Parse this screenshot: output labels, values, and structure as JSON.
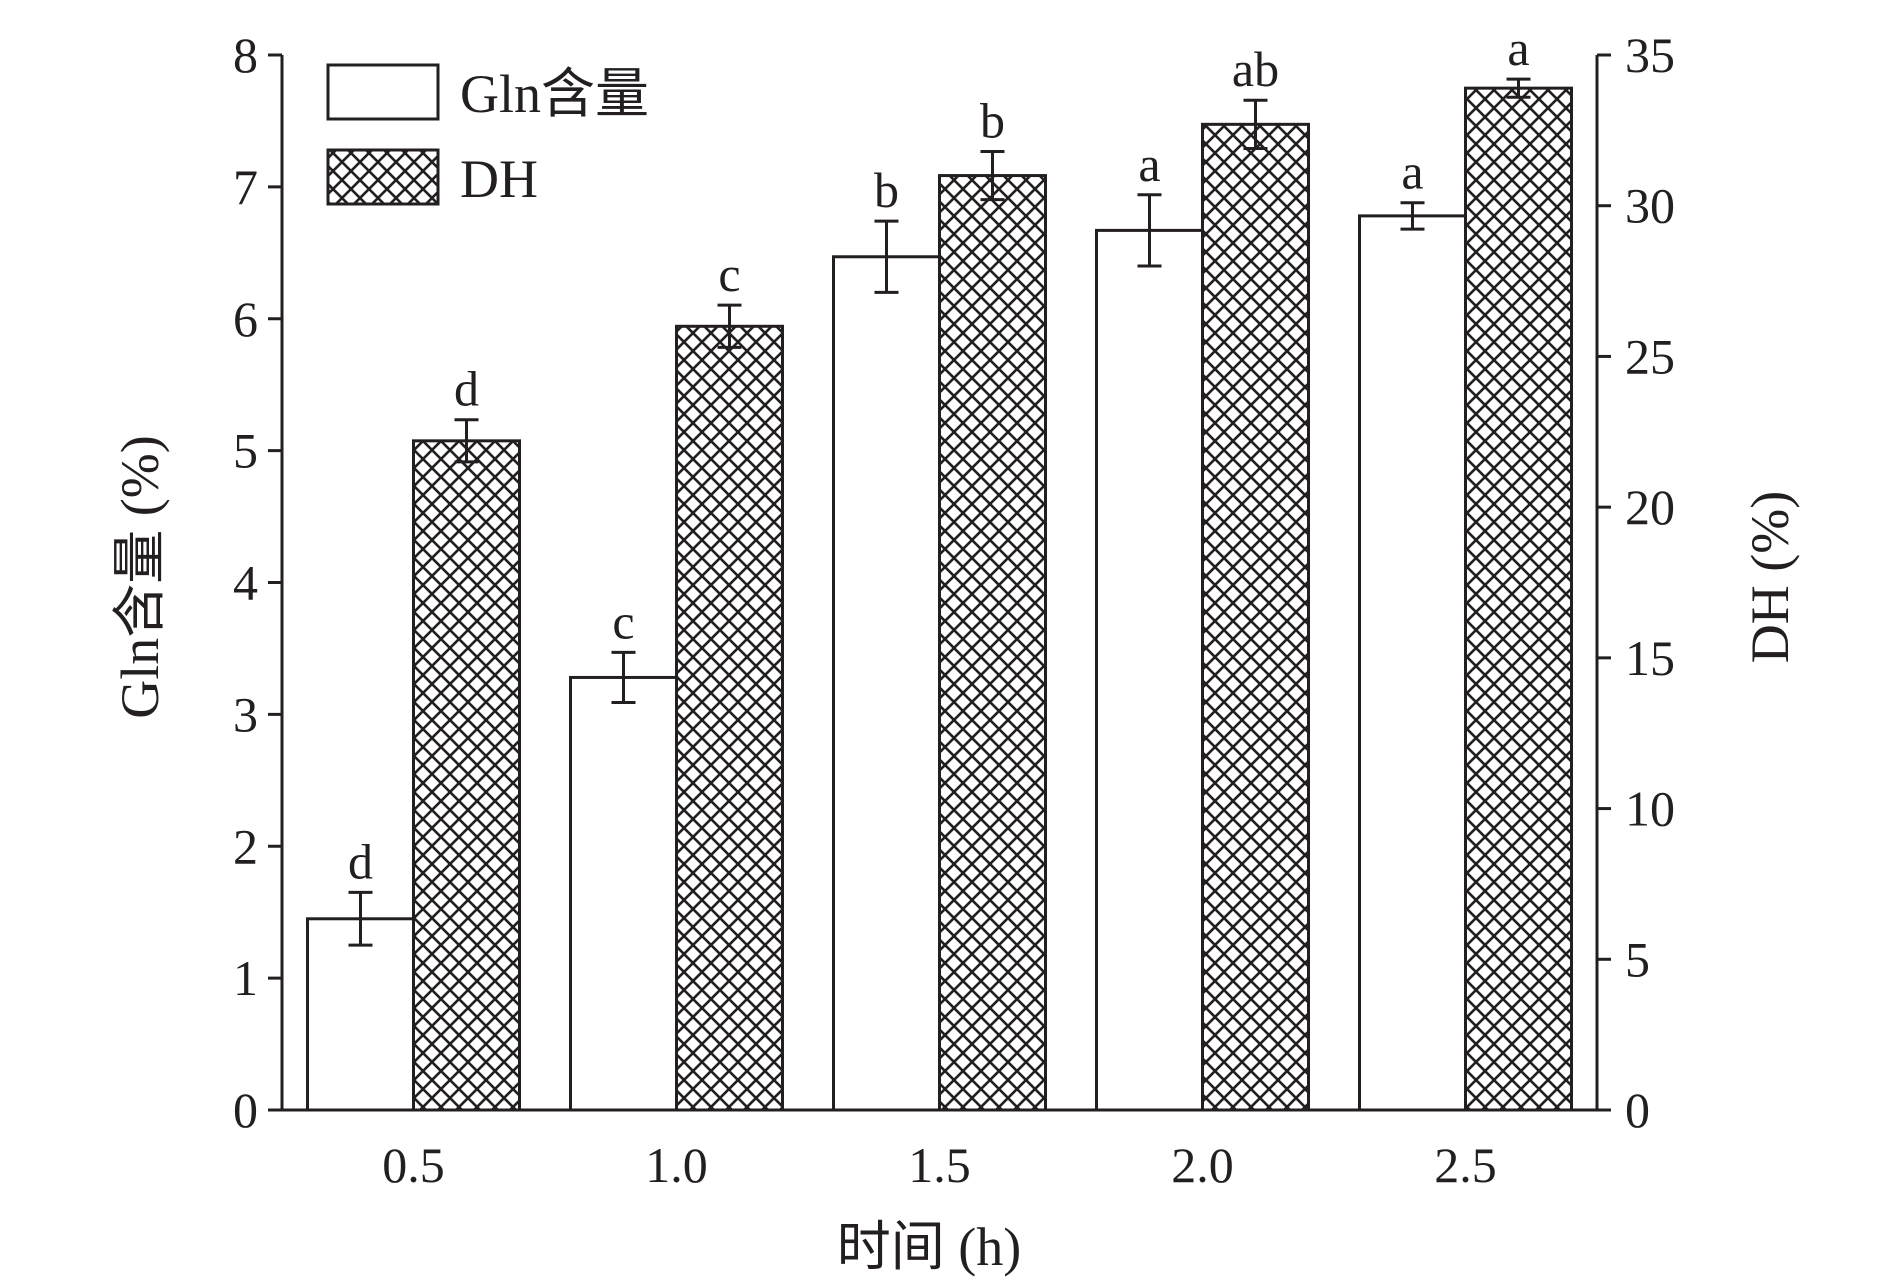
{
  "chart_data": {
    "type": "bar",
    "categories": [
      "0.5",
      "1.0",
      "1.5",
      "2.0",
      "2.5"
    ],
    "xlabel": "时间 (h)",
    "ylabel_left": "Gln含量 (%)",
    "ylabel_right": "DH (%)",
    "ylim_left": [
      0,
      8
    ],
    "ylim_right": [
      0,
      35
    ],
    "yticks_left": [
      "0",
      "1",
      "2",
      "3",
      "4",
      "5",
      "6",
      "7",
      "8"
    ],
    "yticks_right": [
      "0",
      "5",
      "10",
      "15",
      "20",
      "25",
      "30",
      "35"
    ],
    "grid": false,
    "legend_position": "top-left",
    "series": [
      {
        "name": "Gln含量",
        "axis": "left",
        "fill": "#ffffff",
        "values": [
          1.45,
          3.28,
          6.47,
          6.67,
          6.78
        ],
        "errors": [
          0.2,
          0.19,
          0.27,
          0.27,
          0.1
        ],
        "significance": [
          "d",
          "c",
          "b",
          "a",
          "a"
        ]
      },
      {
        "name": "DH",
        "axis": "right",
        "fill": "crosshatch",
        "values": [
          22.2,
          26.0,
          31.0,
          32.7,
          33.9
        ],
        "errors": [
          0.7,
          0.7,
          0.8,
          0.8,
          0.3
        ],
        "significance": [
          "d",
          "c",
          "b",
          "ab",
          "a"
        ]
      }
    ]
  },
  "colors": {
    "ink": "#231f20",
    "background": "#ffffff"
  }
}
